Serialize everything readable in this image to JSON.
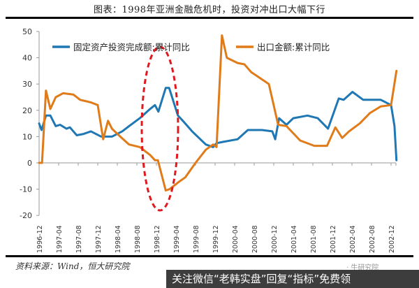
{
  "header": {
    "title": "图表：1998年亚洲金融危机时，投资对冲出口大幅下行"
  },
  "footer": {
    "source": "资料来源：Wind，恒大研究院",
    "watermark_small": "· 牛研究院",
    "banner": "关注微信“老韩实盘”回复“指标”免费领"
  },
  "colors": {
    "series_fai": "#1f77b4",
    "series_export": "#e07b1a",
    "highlight_ellipse": "#e0191f",
    "axis": "#999999"
  },
  "chart_data": {
    "type": "line",
    "title": "图表：1998年亚洲金融危机时，投资对冲出口大幅下行",
    "xlabel": "",
    "ylabel": "",
    "ylim": [
      -20,
      50
    ],
    "yticks": [
      50,
      40,
      30,
      20,
      10,
      0,
      -10,
      -20
    ],
    "grid": false,
    "legend_position": "top-inside",
    "x_tick_labels": [
      "1996-12",
      "1997-04",
      "1997-08",
      "1997-12",
      "1998-04",
      "1998-08",
      "1998-12",
      "1999-04",
      "1999-08",
      "1999-12",
      "2000-04",
      "2000-08",
      "2000-12",
      "2001-04",
      "2001-08",
      "2001-12",
      "2002-04",
      "2002-08",
      "2002-12"
    ],
    "annotation": "red dashed ellipse around 1998-08 to 1999-02 highlighting investment rising while exports fall",
    "series": [
      {
        "name": "固定资产投资完成额:累计同比",
        "color": "#1f77b4",
        "points": [
          [
            0,
            15
          ],
          [
            0.5,
            12.5
          ],
          [
            1.4,
            18
          ],
          [
            2.3,
            18
          ],
          [
            3.4,
            14
          ],
          [
            4.3,
            14.5
          ],
          [
            5.6,
            13
          ],
          [
            6.3,
            13.5
          ],
          [
            7.7,
            10.5
          ],
          [
            9.1,
            11
          ],
          [
            10.6,
            12
          ],
          [
            12.7,
            10
          ],
          [
            14.9,
            10
          ],
          [
            17,
            12
          ],
          [
            18.4,
            14
          ],
          [
            20.6,
            17
          ],
          [
            22.7,
            20.5
          ],
          [
            23.7,
            22
          ],
          [
            24.4,
            19.5
          ],
          [
            25.9,
            28.5
          ],
          [
            26.6,
            28.5
          ],
          [
            28.4,
            18
          ],
          [
            29.4,
            16
          ],
          [
            31.3,
            12
          ],
          [
            34.1,
            7
          ],
          [
            35.6,
            6
          ],
          [
            36.3,
            7.5
          ],
          [
            37.7,
            8
          ],
          [
            40.6,
            9
          ],
          [
            42.7,
            12.5
          ],
          [
            45.6,
            12.5
          ],
          [
            47.7,
            12
          ],
          [
            48.3,
            9
          ],
          [
            49.1,
            17
          ],
          [
            50.6,
            14.5
          ],
          [
            52,
            17
          ],
          [
            54.9,
            18
          ],
          [
            57,
            17
          ],
          [
            59.1,
            13
          ],
          [
            61.3,
            24.5
          ],
          [
            62.3,
            24
          ],
          [
            64.1,
            27
          ],
          [
            66.3,
            24
          ],
          [
            69.9,
            24
          ],
          [
            72,
            22
          ],
          [
            72.7,
            14
          ],
          [
            73.1,
            1
          ]
        ]
      },
      {
        "name": "出口金额:累计同比",
        "color": "#e07b1a",
        "points": [
          [
            0,
            0
          ],
          [
            0.6,
            0
          ],
          [
            1.4,
            27.5
          ],
          [
            2.3,
            20.5
          ],
          [
            3.4,
            25
          ],
          [
            4.9,
            26.5
          ],
          [
            7,
            26
          ],
          [
            8.4,
            24
          ],
          [
            10.6,
            23
          ],
          [
            12,
            22
          ],
          [
            13.1,
            9
          ],
          [
            14.1,
            16
          ],
          [
            14.9,
            13
          ],
          [
            16.6,
            10
          ],
          [
            18.4,
            7
          ],
          [
            20.6,
            6
          ],
          [
            22.7,
            3
          ],
          [
            23.7,
            1
          ],
          [
            24.3,
            1
          ],
          [
            25.9,
            -10.5
          ],
          [
            26.7,
            -10
          ],
          [
            28.4,
            -7.5
          ],
          [
            29.9,
            -5.5
          ],
          [
            32,
            0
          ],
          [
            34.1,
            5
          ],
          [
            35.6,
            7
          ],
          [
            36.3,
            6
          ],
          [
            37.4,
            48.5
          ],
          [
            38.4,
            40
          ],
          [
            40.6,
            38
          ],
          [
            42,
            37.5
          ],
          [
            43.4,
            34.5
          ],
          [
            47,
            30
          ],
          [
            48.9,
            14.5
          ],
          [
            50.6,
            14
          ],
          [
            53.4,
            8.5
          ],
          [
            56.3,
            6.5
          ],
          [
            58.9,
            6.5
          ],
          [
            60.6,
            13.5
          ],
          [
            62,
            9.5
          ],
          [
            63.4,
            12
          ],
          [
            65.6,
            15
          ],
          [
            67.7,
            19
          ],
          [
            69.9,
            21.5
          ],
          [
            72,
            22
          ],
          [
            73.1,
            35
          ]
        ]
      }
    ]
  }
}
